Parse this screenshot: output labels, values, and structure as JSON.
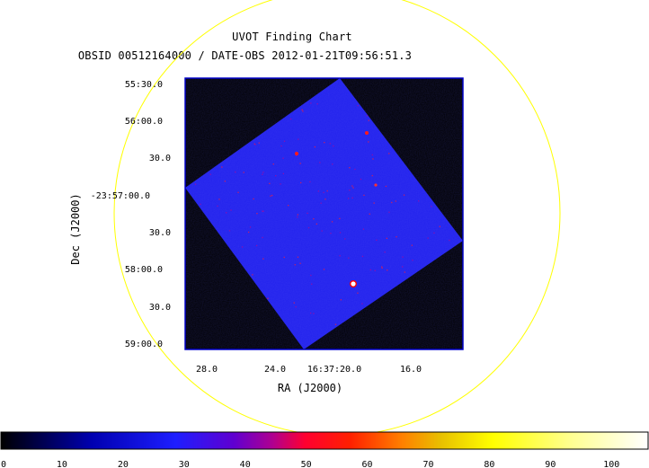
{
  "chart_data": {
    "type": "image",
    "title": "UVOT Finding Chart",
    "subtitle": "OBSID 00512164000 / DATE-OBS 2012-01-21T09:56:51.3",
    "xlabel": "RA (J2000)",
    "ylabel": "Dec (J2000)",
    "x_ticks": [
      "28.0",
      "24.0",
      "16:37:20.0",
      "16.0"
    ],
    "y_ticks": [
      "55:30.0",
      "56:00.0",
      "30.0",
      "-23:57:00.0",
      "30.0",
      "58:00.0",
      "30.0",
      "59:00.0"
    ],
    "colorbar": {
      "ticks": [
        0,
        10,
        20,
        30,
        40,
        50,
        60,
        70,
        80,
        90,
        100
      ],
      "range": [
        0,
        106
      ],
      "colors": [
        "#000000",
        "#0000c8",
        "#1a1aff",
        "#7000c8",
        "#e0007a",
        "#ff0000",
        "#ff7a00",
        "#f5d000",
        "#ffff00",
        "#ffffc8",
        "#ffffff"
      ]
    },
    "circle_color": "#ffff00",
    "field_color": "#2525ee",
    "frame_color": "#0000c8"
  }
}
